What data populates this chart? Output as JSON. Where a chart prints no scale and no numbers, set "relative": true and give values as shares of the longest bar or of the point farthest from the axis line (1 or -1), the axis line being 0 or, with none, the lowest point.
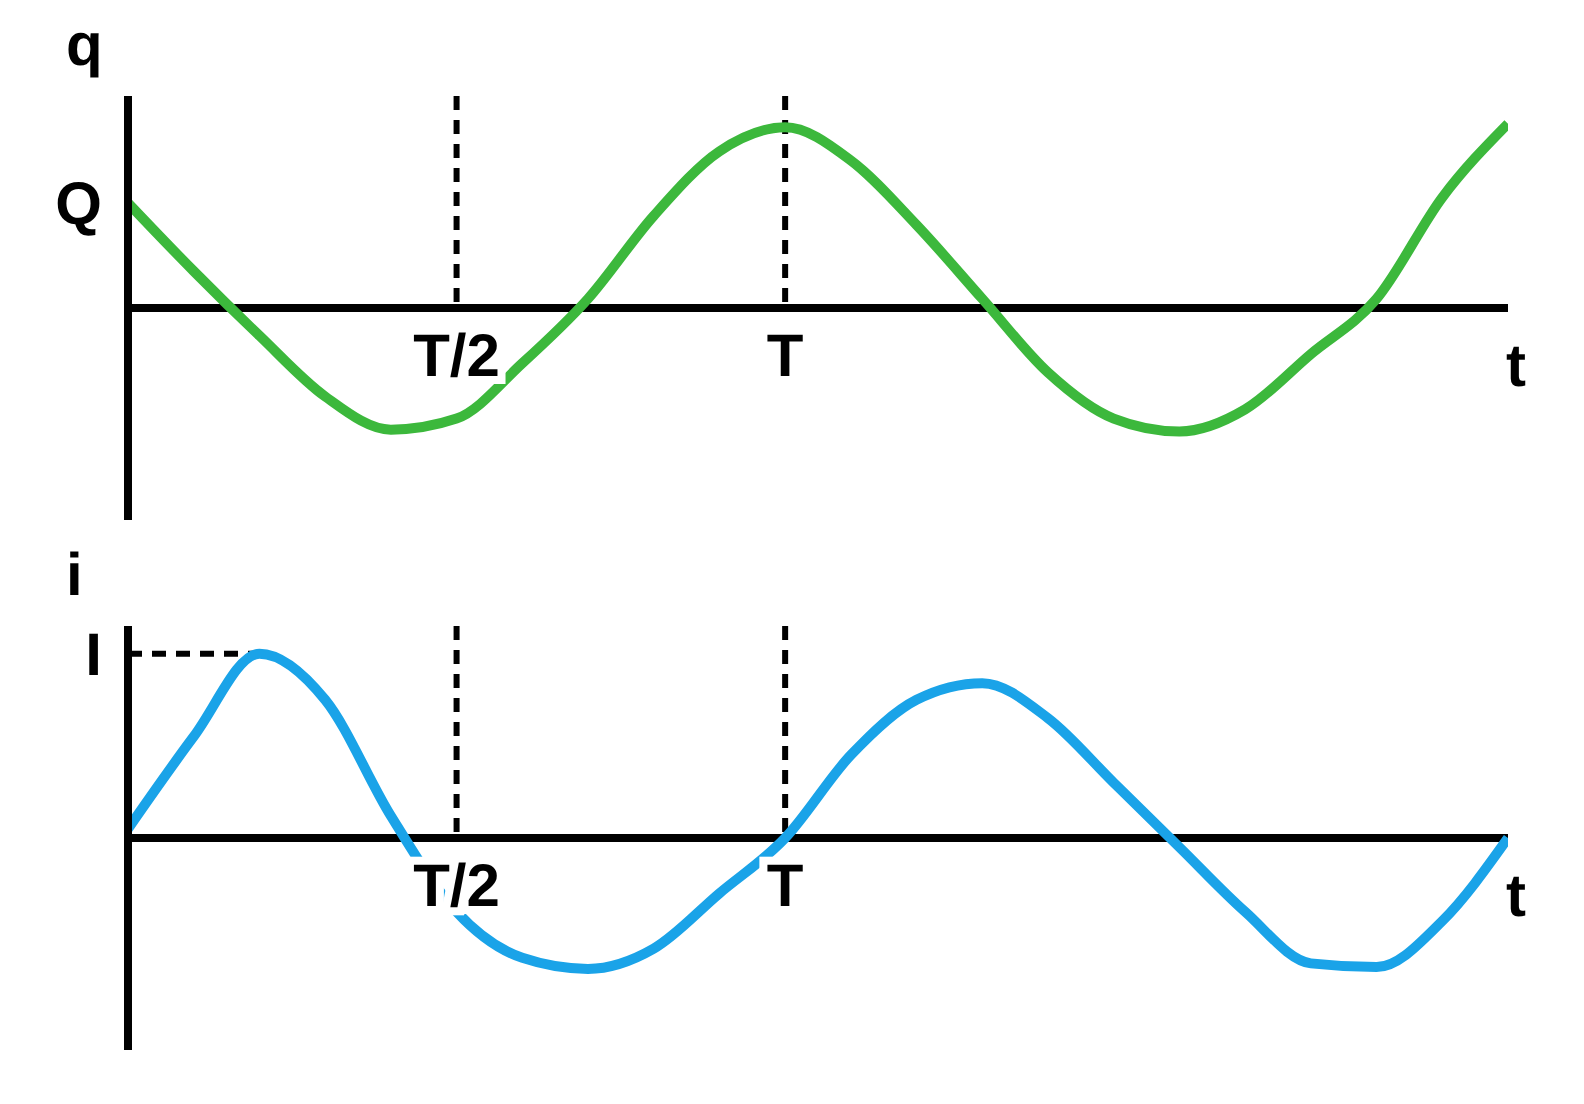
{
  "chart_data": [
    {
      "type": "line",
      "relative": true,
      "marker": "none",
      "xlabel": "t",
      "ylabel": "q",
      "categories": [
        null,
        null,
        null,
        null,
        null,
        "T/2",
        null,
        null,
        null,
        null,
        "T",
        null,
        null,
        null,
        null,
        null,
        null,
        null,
        null,
        null,
        null,
        null
      ],
      "series": [
        {
          "color": "#3cb83c",
          "values": [
            0.57,
            0.2,
            -0.15,
            -0.48,
            -0.66,
            -0.6,
            -0.3,
            0.05,
            0.5,
            0.85,
            0.98,
            0.8,
            0.45,
            0.05,
            -0.35,
            -0.6,
            -0.67,
            -0.55,
            -0.25,
            0.05,
            0.6,
            1
          ]
        }
      ],
      "ref_lines": [
        {
          "axis": "x",
          "value": "T/2",
          "line_style": "dashed",
          "color": "#000000"
        },
        {
          "axis": "x",
          "value": "T",
          "line_style": "dashed",
          "color": "#000000"
        }
      ],
      "annotations": [
        "Q"
      ]
    },
    {
      "type": "line",
      "relative": true,
      "marker": "none",
      "xlabel": "t",
      "ylabel": "i",
      "categories": [
        null,
        null,
        null,
        null,
        null,
        "T/2",
        null,
        null,
        null,
        null,
        "T",
        null,
        null,
        null,
        null,
        null,
        null,
        null,
        null,
        null,
        null,
        null
      ],
      "series": [
        {
          "color": "#1aa3e8",
          "values": [
            0.05,
            0.55,
            1,
            0.75,
            0.12,
            -0.4,
            -0.65,
            -0.71,
            -0.6,
            -0.3,
            0,
            0.45,
            0.75,
            0.84,
            0.65,
            0.3,
            -0.05,
            -0.4,
            -0.68,
            -0.7,
            -0.45,
            0
          ]
        }
      ],
      "ref_lines": [
        {
          "axis": "x",
          "value": "T/2",
          "line_style": "dashed",
          "color": "#000000"
        },
        {
          "axis": "x",
          "value": "T",
          "line_style": "dashed",
          "color": "#000000"
        }
      ],
      "annotations": [
        "I"
      ]
    }
  ]
}
